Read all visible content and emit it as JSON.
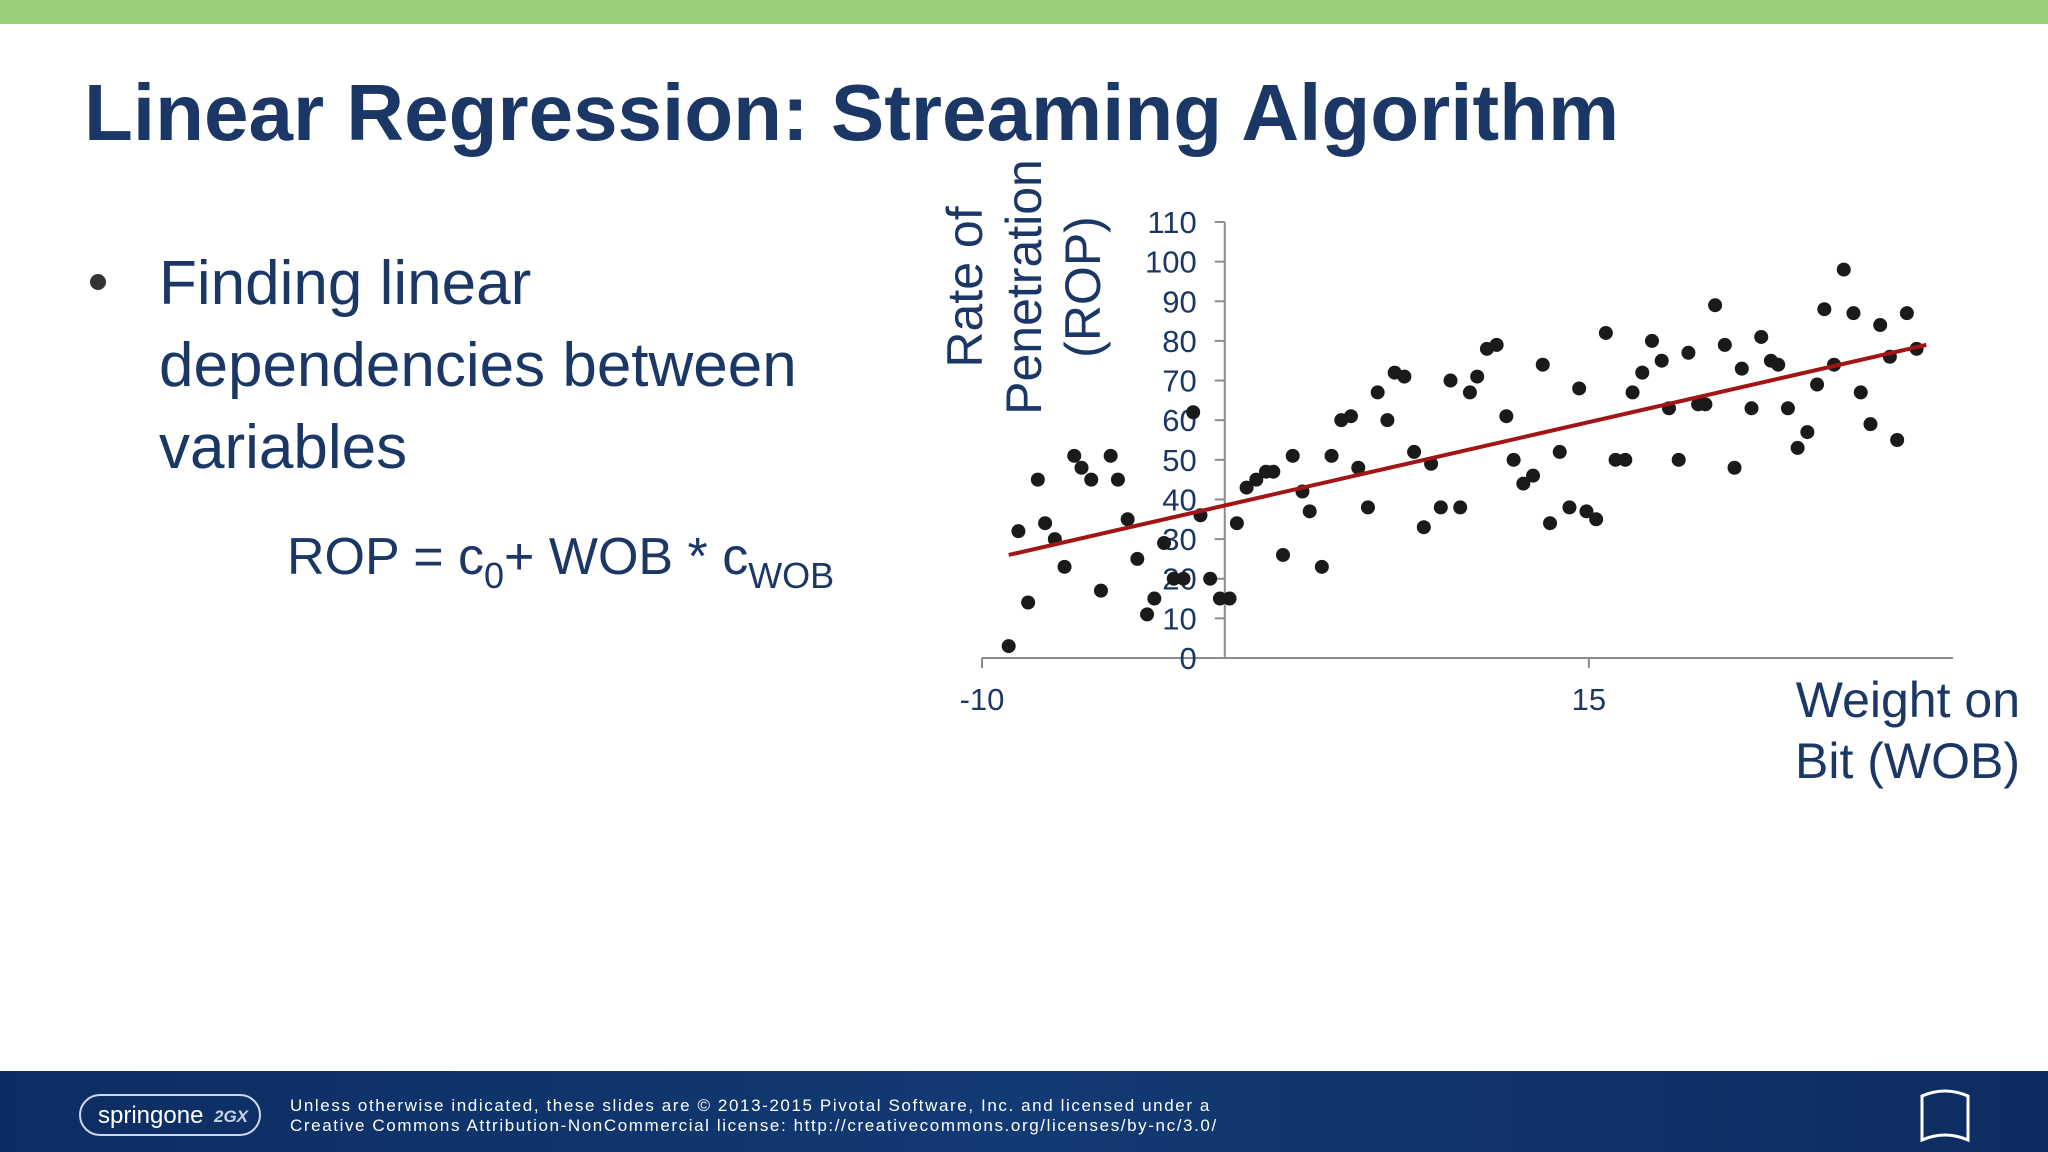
{
  "header": {
    "title": "Linear Regression: Streaming Algorithm"
  },
  "bullet": {
    "lines": [
      "Finding linear",
      "dependencies between",
      "variables"
    ]
  },
  "equation": {
    "left": "ROP = c",
    "sub1": "0",
    "middle": "+ WOB * c",
    "sub2": "WOB"
  },
  "chart_data": {
    "type": "scatter",
    "x_label": [
      "Weight on",
      "Bit (WOB)"
    ],
    "y_label": [
      "Rate of",
      "Penetration",
      "(ROP)"
    ],
    "xlim": [
      -10,
      30
    ],
    "xticks": [
      -10,
      15
    ],
    "ylim": [
      0,
      110
    ],
    "yticks": [
      0,
      10,
      20,
      30,
      40,
      50,
      60,
      70,
      80,
      90,
      100,
      110
    ],
    "color": "#1a1a1a",
    "x": [
      -8.9,
      -8.5,
      -8.1,
      -7.7,
      -7.4,
      -7.0,
      -6.6,
      -6.2,
      -5.9,
      -5.5,
      -5.1,
      -4.7,
      -4.4,
      -4.0,
      -3.6,
      -3.2,
      -2.9,
      -2.5,
      -2.1,
      -1.7,
      -1.3,
      -1.0,
      -0.6,
      -0.2,
      0.2,
      0.5,
      0.9,
      1.3,
      1.7,
      2.0,
      2.4,
      2.8,
      3.2,
      3.5,
      4.0,
      4.4,
      4.8,
      5.2,
      5.5,
      5.9,
      6.3,
      6.7,
      7.0,
      7.4,
      7.8,
      8.2,
      8.5,
      8.9,
      9.3,
      9.7,
      10.1,
      10.4,
      10.8,
      11.2,
      11.6,
      11.9,
      12.3,
      12.7,
      13.1,
      13.4,
      13.8,
      14.2,
      14.6,
      14.9,
      15.3,
      15.7,
      16.1,
      16.5,
      16.8,
      17.2,
      17.6,
      18.0,
      18.3,
      18.7,
      19.1,
      19.5,
      19.8,
      20.2,
      20.6,
      21.0,
      21.3,
      21.7,
      22.1,
      22.5,
      22.8,
      23.2,
      23.6,
      24.0,
      24.4,
      24.7,
      25.1,
      25.5,
      25.9,
      26.2,
      26.6,
      27.0,
      27.4,
      27.7,
      28.1,
      28.5
    ],
    "values": [
      3,
      32,
      14,
      45,
      34,
      30,
      23,
      51,
      48,
      45,
      17,
      51,
      45,
      35,
      25,
      11,
      15,
      29,
      20,
      20,
      62,
      36,
      20,
      15,
      15,
      34,
      43,
      45,
      47,
      47,
      26,
      51,
      42,
      37,
      23,
      51,
      60,
      61,
      48,
      38,
      67,
      60,
      72,
      71,
      52,
      33,
      49,
      38,
      70,
      38,
      67,
      71,
      78,
      79,
      61,
      50,
      44,
      46,
      74,
      34,
      52,
      38,
      68,
      37,
      35,
      82,
      50,
      50,
      67,
      72,
      80,
      75,
      63,
      50,
      77,
      64,
      64,
      89,
      79,
      48,
      73,
      63,
      81,
      75,
      74,
      63,
      53,
      57,
      69,
      88,
      74,
      98,
      87,
      67,
      59,
      84,
      76,
      55,
      87,
      78
    ],
    "trendline": {
      "x": [
        -8.9,
        28.9
      ],
      "values": [
        26,
        79
      ],
      "color": "#a31515"
    }
  },
  "footer": {
    "logo": "springone",
    "logo_suffix": "2GX",
    "lines": [
      "Unless otherwise indicated, these slides are © 2013-2015 Pivotal Software, Inc. and licensed under a",
      "Creative Commons Attribution-NonCommercial license: http://creativecommons.org/licenses/by-nc/3.0/"
    ]
  }
}
